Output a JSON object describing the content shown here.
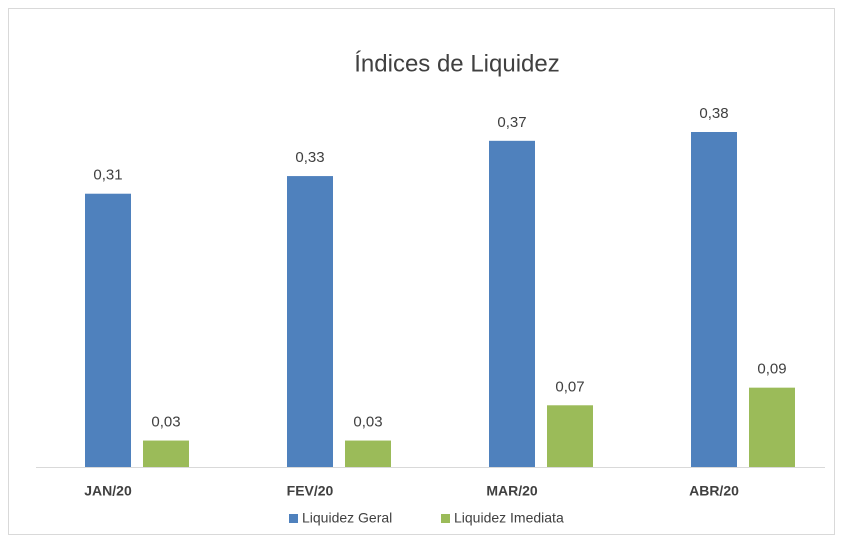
{
  "chart_data": {
    "type": "bar",
    "title": "Índices de Liquidez",
    "categories": [
      "JAN/20",
      "FEV/20",
      "MAR/20",
      "ABR/20"
    ],
    "series": [
      {
        "name": "Liquidez Geral",
        "color": "#4f81bd",
        "values": [
          0.31,
          0.33,
          0.37,
          0.38
        ],
        "value_labels": [
          "0,31",
          "0,33",
          "0,37",
          "0,38"
        ]
      },
      {
        "name": "Liquidez Imediata",
        "color": "#9bbb59",
        "values": [
          0.03,
          0.03,
          0.07,
          0.09
        ],
        "value_labels": [
          "0,03",
          "0,03",
          "0,07",
          "0,09"
        ]
      }
    ],
    "legend": "bottom"
  }
}
